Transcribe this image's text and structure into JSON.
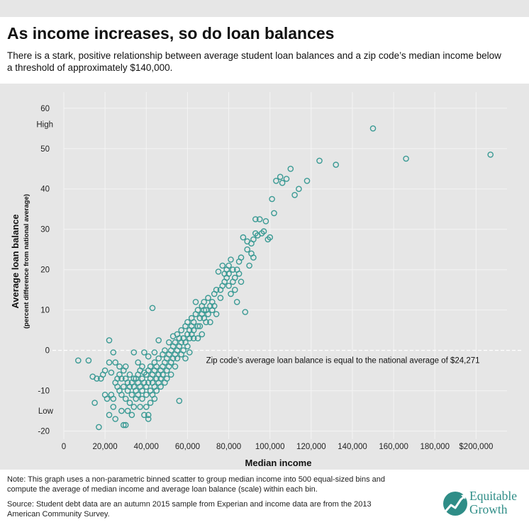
{
  "header": {
    "title": "As income increases, so do loan balances",
    "subtitle": "There is a stark, positive relationship between average student loan balances and a zip code’s median income below a threshold of approximately $140,000."
  },
  "footer": {
    "note": "Note: This graph uses a non-parametric binned scatter to group median income into 500 equal-sized bins and compute the average of median income and average loan balance (scale) within each bin.",
    "source": "Source: Student debt data are an autumn 2015 sample from Experian and income data are from the 2013 American Community Survey.",
    "logo_line1": "Equitable",
    "logo_line2": "Growth"
  },
  "chart_data": {
    "type": "scatter",
    "xlabel": "Median income",
    "ylabel": "Average loan balance",
    "ylabel_sub": "(percent difference from national average)",
    "xlim": [
      0,
      215000
    ],
    "ylim": [
      -22,
      64
    ],
    "x_ticks": [
      "0",
      "20,000",
      "40,000",
      "60,000",
      "80,000",
      "100,000",
      "120,000",
      "140,000",
      "160,000",
      "180,000",
      "$200,000"
    ],
    "x_tick_values": [
      0,
      20000,
      40000,
      60000,
      80000,
      100000,
      120000,
      140000,
      160000,
      180000,
      200000
    ],
    "y_ticks": [
      "60",
      "50",
      "40",
      "30",
      "20",
      "10",
      "0",
      "-10",
      "-20"
    ],
    "y_tick_values": [
      60,
      50,
      40,
      30,
      20,
      10,
      0,
      -10,
      -20
    ],
    "y_markers": {
      "high": "High",
      "low": "Low"
    },
    "reference_line": {
      "y": 0,
      "label": "Zip code’s average loan balance is equal to the national average of $24,271"
    },
    "marker_color": "#3a9a94",
    "grid": true,
    "points": [
      [
        7000,
        -2.5
      ],
      [
        12000,
        -2.5
      ],
      [
        14000,
        -6.5
      ],
      [
        15000,
        -13
      ],
      [
        16000,
        -7
      ],
      [
        17000,
        -19
      ],
      [
        18000,
        -7
      ],
      [
        19000,
        -6
      ],
      [
        20000,
        -11
      ],
      [
        21000,
        -12
      ],
      [
        20000,
        -5
      ],
      [
        22000,
        2.5
      ],
      [
        22000,
        -16
      ],
      [
        22000,
        -3
      ],
      [
        23000,
        -11
      ],
      [
        23000,
        -5.5
      ],
      [
        24000,
        -0.5
      ],
      [
        24000,
        -12
      ],
      [
        24000,
        -14
      ],
      [
        25000,
        -17
      ],
      [
        25000,
        -8
      ],
      [
        25000,
        -3
      ],
      [
        26000,
        -7
      ],
      [
        26000,
        -9
      ],
      [
        27000,
        -10
      ],
      [
        27000,
        -6
      ],
      [
        27000,
        -4
      ],
      [
        28000,
        -7
      ],
      [
        28000,
        -11
      ],
      [
        28000,
        -15
      ],
      [
        29000,
        -18.5
      ],
      [
        29000,
        -9
      ],
      [
        29000,
        -5
      ],
      [
        30000,
        -18.5
      ],
      [
        30000,
        -12
      ],
      [
        30000,
        -7
      ],
      [
        30000,
        -4
      ],
      [
        31000,
        -8
      ],
      [
        31000,
        -10
      ],
      [
        31000,
        -15
      ],
      [
        32000,
        -6
      ],
      [
        32000,
        -9
      ],
      [
        32000,
        -13
      ],
      [
        33000,
        -16
      ],
      [
        33000,
        -8
      ],
      [
        33000,
        -11
      ],
      [
        34000,
        -7
      ],
      [
        34000,
        -9
      ],
      [
        34000,
        -14
      ],
      [
        34000,
        -0.5
      ],
      [
        35000,
        -10
      ],
      [
        35000,
        -7
      ],
      [
        35000,
        -12
      ],
      [
        36000,
        -6
      ],
      [
        36000,
        -8
      ],
      [
        36000,
        -3
      ],
      [
        36000,
        -11
      ],
      [
        37000,
        -9
      ],
      [
        37000,
        -14
      ],
      [
        37000,
        -5
      ],
      [
        38000,
        -7
      ],
      [
        38000,
        -10
      ],
      [
        38000,
        -4
      ],
      [
        38000,
        -12
      ],
      [
        39000,
        -16
      ],
      [
        39000,
        -8
      ],
      [
        39000,
        -5.5
      ],
      [
        39000,
        -0.5
      ],
      [
        40000,
        -9
      ],
      [
        40000,
        -6
      ],
      [
        40000,
        -11
      ],
      [
        40000,
        -14
      ],
      [
        41000,
        -17
      ],
      [
        41000,
        -16
      ],
      [
        41000,
        -8
      ],
      [
        41000,
        -5
      ],
      [
        41000,
        -1.5
      ],
      [
        42000,
        -10
      ],
      [
        42000,
        -7
      ],
      [
        42000,
        -4
      ],
      [
        42000,
        -13
      ],
      [
        43000,
        -8
      ],
      [
        43000,
        -6
      ],
      [
        43000,
        -11
      ],
      [
        43000,
        10.5
      ],
      [
        44000,
        -9
      ],
      [
        44000,
        -5
      ],
      [
        44000,
        -12
      ],
      [
        44000,
        -3
      ],
      [
        44000,
        -0.5
      ],
      [
        45000,
        -7
      ],
      [
        45000,
        -10
      ],
      [
        45000,
        -4
      ],
      [
        46000,
        -8
      ],
      [
        46000,
        -6
      ],
      [
        46000,
        -2
      ],
      [
        46000,
        2.5
      ],
      [
        47000,
        -9
      ],
      [
        47000,
        -5
      ],
      [
        47000,
        -7
      ],
      [
        48000,
        -4
      ],
      [
        48000,
        -6
      ],
      [
        48000,
        -1
      ],
      [
        49000,
        -8
      ],
      [
        49000,
        -3
      ],
      [
        49000,
        0
      ],
      [
        50000,
        -5
      ],
      [
        50000,
        -2
      ],
      [
        50000,
        -7
      ],
      [
        51000,
        -4
      ],
      [
        51000,
        -1
      ],
      [
        51000,
        2
      ],
      [
        52000,
        -3
      ],
      [
        52000,
        0
      ],
      [
        52000,
        -6
      ],
      [
        53000,
        -2
      ],
      [
        53000,
        1
      ],
      [
        53000,
        3.5
      ],
      [
        54000,
        -1
      ],
      [
        54000,
        -4
      ],
      [
        54000,
        2
      ],
      [
        55000,
        0
      ],
      [
        55000,
        -2
      ],
      [
        55000,
        4
      ],
      [
        56000,
        1
      ],
      [
        56000,
        -12.5
      ],
      [
        56000,
        3
      ],
      [
        57000,
        -1
      ],
      [
        57000,
        2
      ],
      [
        57000,
        5
      ],
      [
        58000,
        0
      ],
      [
        58000,
        3
      ],
      [
        59000,
        -2
      ],
      [
        59000,
        2
      ],
      [
        59000,
        6
      ],
      [
        60000,
        4
      ],
      [
        60000,
        1
      ],
      [
        60000,
        7
      ],
      [
        61000,
        3
      ],
      [
        61000,
        5
      ],
      [
        61000,
        -0.5
      ],
      [
        62000,
        6
      ],
      [
        62000,
        4
      ],
      [
        62000,
        8
      ],
      [
        63000,
        5
      ],
      [
        63000,
        3
      ],
      [
        63000,
        7
      ],
      [
        64000,
        12
      ],
      [
        64000,
        9
      ],
      [
        65000,
        6
      ],
      [
        65000,
        10
      ],
      [
        65000,
        3
      ],
      [
        66000,
        8
      ],
      [
        66000,
        6
      ],
      [
        67000,
        11
      ],
      [
        67000,
        9
      ],
      [
        67000,
        4
      ],
      [
        68000,
        12
      ],
      [
        68000,
        8
      ],
      [
        68000,
        10
      ],
      [
        69000,
        7
      ],
      [
        69000,
        10
      ],
      [
        70000,
        13
      ],
      [
        70000,
        9
      ],
      [
        71000,
        11
      ],
      [
        71000,
        7
      ],
      [
        72000,
        10
      ],
      [
        72000,
        12
      ],
      [
        73000,
        14
      ],
      [
        73000,
        11
      ],
      [
        74000,
        15
      ],
      [
        74000,
        9
      ],
      [
        75000,
        19.5
      ],
      [
        76000,
        15
      ],
      [
        76000,
        13
      ],
      [
        77000,
        21
      ],
      [
        77000,
        16
      ],
      [
        78000,
        19
      ],
      [
        78000,
        17
      ],
      [
        79000,
        20
      ],
      [
        79000,
        18
      ],
      [
        80000,
        21
      ],
      [
        80000,
        19
      ],
      [
        80000,
        16
      ],
      [
        81000,
        22.5
      ],
      [
        81000,
        14
      ],
      [
        82000,
        20
      ],
      [
        82000,
        17
      ],
      [
        83000,
        18
      ],
      [
        83000,
        15
      ],
      [
        84000,
        20
      ],
      [
        84000,
        12
      ],
      [
        85000,
        22
      ],
      [
        85000,
        19
      ],
      [
        86000,
        23
      ],
      [
        86000,
        17
      ],
      [
        87000,
        28
      ],
      [
        88000,
        9.5
      ],
      [
        89000,
        27
      ],
      [
        89000,
        25
      ],
      [
        90000,
        21
      ],
      [
        91000,
        26.5
      ],
      [
        91000,
        24
      ],
      [
        92000,
        27.5
      ],
      [
        92000,
        23
      ],
      [
        93000,
        29
      ],
      [
        93000,
        32.5
      ],
      [
        94000,
        28.5
      ],
      [
        95000,
        32.5
      ],
      [
        96000,
        29
      ],
      [
        97000,
        29.5
      ],
      [
        98000,
        32
      ],
      [
        99000,
        27.5
      ],
      [
        100000,
        28
      ],
      [
        101000,
        37.5
      ],
      [
        102000,
        34
      ],
      [
        103000,
        42
      ],
      [
        105000,
        43
      ],
      [
        106000,
        41.5
      ],
      [
        108000,
        42.5
      ],
      [
        110000,
        45
      ],
      [
        112000,
        38.5
      ],
      [
        114000,
        40
      ],
      [
        118000,
        42
      ],
      [
        124000,
        47
      ],
      [
        132000,
        46
      ],
      [
        150000,
        55
      ],
      [
        166000,
        47.5
      ],
      [
        207000,
        48.5
      ]
    ]
  }
}
